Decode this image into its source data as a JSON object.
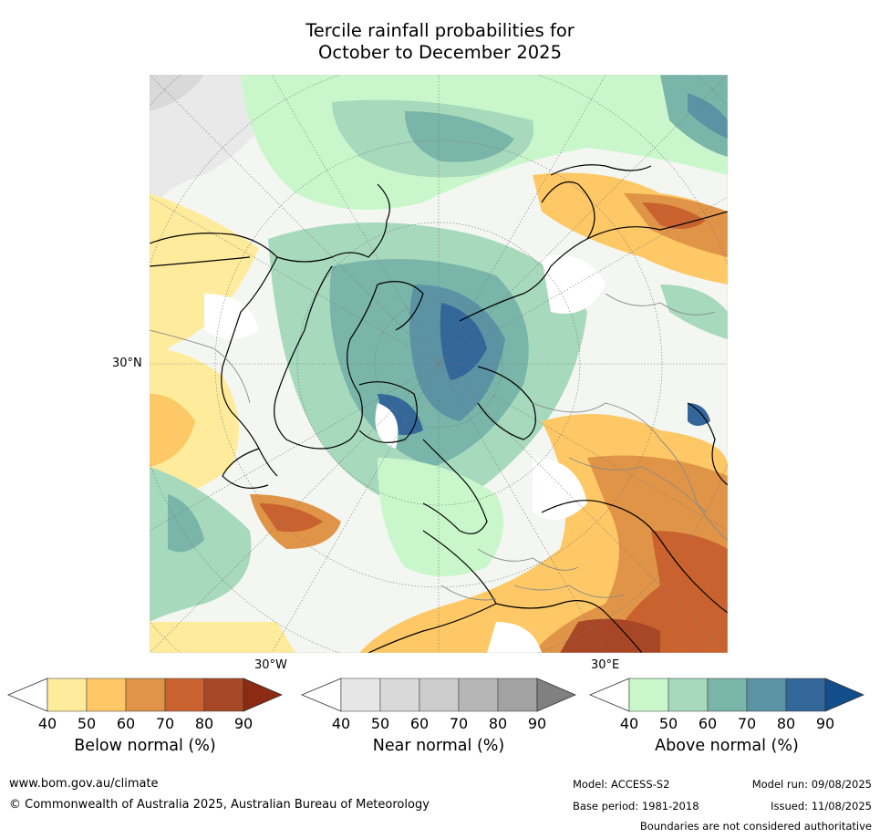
{
  "title_line1": "Tercile rainfall probabilities for",
  "title_line2": "October to December 2025",
  "map": {
    "lat_label": "30°N",
    "lon_label_left": "30°W",
    "lon_label_right": "30°E"
  },
  "colorbars": [
    {
      "label": "Below normal (%)",
      "ticks": [
        "40",
        "50",
        "60",
        "70",
        "80",
        "90"
      ],
      "colors": [
        "#ffffff",
        "#ffeb9c",
        "#fdc865",
        "#e09447",
        "#c9622f",
        "#a84726",
        "#8c2a13"
      ]
    },
    {
      "label": "Near normal (%)",
      "ticks": [
        "40",
        "50",
        "60",
        "70",
        "80",
        "90"
      ],
      "colors": [
        "#ffffff",
        "#e6e6e6",
        "#d9d9d9",
        "#cccccc",
        "#b6b6b6",
        "#a2a2a2",
        "#808080"
      ]
    },
    {
      "label": "Above normal (%)",
      "ticks": [
        "40",
        "50",
        "60",
        "70",
        "80",
        "90"
      ],
      "colors": [
        "#ffffff",
        "#c9f7cb",
        "#a7d9bd",
        "#7ab5a9",
        "#5b93a4",
        "#336699",
        "#134d8a"
      ]
    }
  ],
  "footer": {
    "website": "www.bom.gov.au/climate",
    "copyright": "© Commonwealth of Australia 2025, Australian Bureau of Meteorology",
    "model": "Model: ACCESS-S2",
    "model_run": "Model run: 09/08/2025",
    "base_period": "Base period: 1981-2018",
    "issued": "Issued: 11/08/2025",
    "disclaimer": "Boundaries are not considered authoritative"
  }
}
